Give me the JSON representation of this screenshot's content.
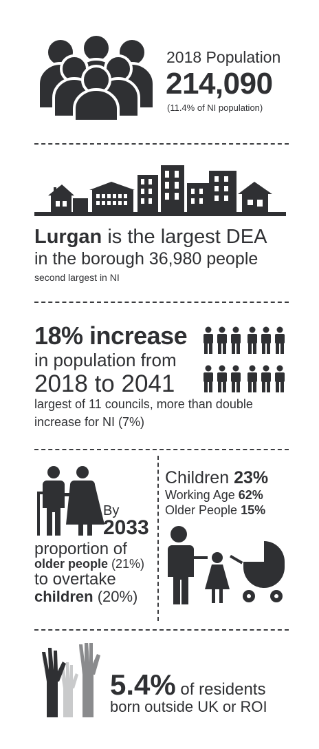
{
  "population": {
    "label": "2018 Population",
    "value": "214,090",
    "note": "(11.4% of NI population)"
  },
  "dea": {
    "name": "Lurgan",
    "line1_rest": " is the largest DEA",
    "line2": "in the borough 36,980 people",
    "line3": "second largest in NI"
  },
  "growth": {
    "headline": "18% increase",
    "line2": "in population from",
    "line3": "2018 to 2041",
    "line4": "largest of 11 councils, more than double",
    "line5": "increase for NI (7%)"
  },
  "ageing": {
    "by": "By",
    "year": "2033",
    "line1": "proportion of",
    "older_label": "older people",
    "older_pct": " (21%)",
    "line3": "to overtake",
    "children_label": "children",
    "children_pct": " (20%)"
  },
  "age_breakdown": [
    {
      "label": "Children ",
      "value": "23%"
    },
    {
      "label": "Working Age ",
      "value": "62%"
    },
    {
      "label": "Older People ",
      "value": "15%"
    }
  ],
  "migration": {
    "value": "5.4%",
    "line1_rest": " of residents",
    "line2": "born outside UK or ROI"
  },
  "colors": {
    "dark": "#2f3033",
    "mid": "#8a8b8d",
    "light": "#c9cacb"
  }
}
